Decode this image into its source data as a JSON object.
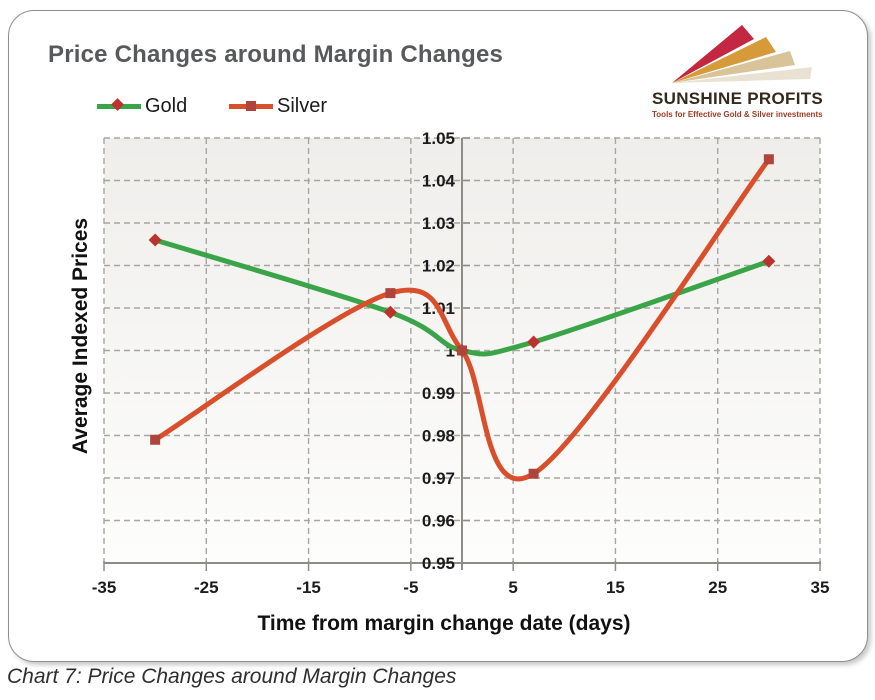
{
  "title": "Price Changes around Margin Changes",
  "legend": [
    {
      "label": "Gold"
    },
    {
      "label": "Silver"
    }
  ],
  "logo": {
    "name": "SUNSHINE PROFITS",
    "tagline": "Tools for Effective Gold & Silver investments"
  },
  "caption": "Chart 7: Price Changes around Margin Changes",
  "chart_data": {
    "type": "line",
    "smooth": true,
    "x": [
      -30,
      -7,
      0,
      7,
      30
    ],
    "series": [
      {
        "name": "Gold",
        "color": "#3aa449",
        "marker": "diamond",
        "marker_color": "#bb332c",
        "values": [
          1.026,
          1.009,
          1.0,
          1.002,
          1.021
        ]
      },
      {
        "name": "Silver",
        "color": "#d94f2b",
        "marker": "square",
        "marker_color": "#ae443b",
        "values": [
          0.979,
          1.0135,
          1.0,
          0.971,
          1.045
        ]
      }
    ],
    "xlabel": "Time from margin change date (days)",
    "ylabel": "Average Indexed Prices",
    "xlim": [
      -35,
      35
    ],
    "ylim": [
      0.95,
      1.05
    ],
    "xticks": [
      -35,
      -25,
      -15,
      -5,
      5,
      15,
      25,
      35
    ],
    "yticks": [
      0.95,
      0.96,
      0.97,
      0.98,
      0.99,
      1.0,
      1.01,
      1.02,
      1.03,
      1.04,
      1.05
    ],
    "grid": "dashed",
    "legend_position": "top-left"
  }
}
